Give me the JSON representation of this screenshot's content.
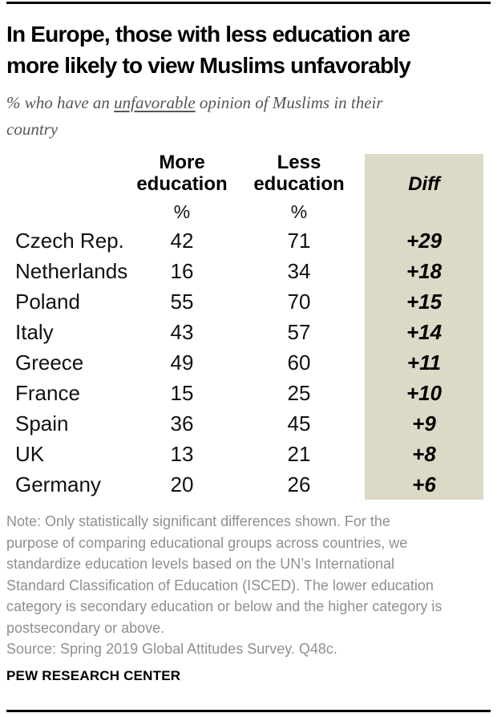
{
  "colors": {
    "diff_column_bg": "#dcd9c7",
    "title_text": "#000000",
    "subtitle_text": "#55565a",
    "note_text": "#8e8f91"
  },
  "header": {
    "title_lines": [
      "In Europe, those with less education are",
      "more likely to view Muslims unfavorably"
    ],
    "subtitle": {
      "pre": "% who have an ",
      "underlined": "unfavorable",
      "post": " opinion of Muslims in their",
      "line2": "country"
    }
  },
  "table": {
    "header": {
      "more": [
        "More",
        "education"
      ],
      "less": [
        "Less",
        "education"
      ],
      "diff": "Diff"
    },
    "pct": "%",
    "rows": [
      {
        "country": "Czech Rep.",
        "more": "42",
        "less": "71",
        "diff": "+29"
      },
      {
        "country": "Netherlands",
        "more": "16",
        "less": "34",
        "diff": "+18"
      },
      {
        "country": "Poland",
        "more": "55",
        "less": "70",
        "diff": "+15"
      },
      {
        "country": "Italy",
        "more": "43",
        "less": "57",
        "diff": "+14"
      },
      {
        "country": "Greece",
        "more": "49",
        "less": "60",
        "diff": "+11"
      },
      {
        "country": "France",
        "more": "15",
        "less": "25",
        "diff": "+10"
      },
      {
        "country": "Spain",
        "more": "36",
        "less": "45",
        "diff": "+9"
      },
      {
        "country": "UK",
        "more": "13",
        "less": "21",
        "diff": "+8"
      },
      {
        "country": "Germany",
        "more": "20",
        "less": "26",
        "diff": "+6"
      }
    ]
  },
  "footer": {
    "note_lines": [
      "Note: Only statistically significant differences shown. For the",
      "purpose of comparing educational groups across countries, we",
      "standardize education levels based on the UN’s International",
      "Standard Classification of Education (ISCED). The lower education",
      "category is secondary education or below and the higher category is",
      "postsecondary or above."
    ],
    "source": "Source: Spring 2019 Global Attitudes Survey. Q48c.",
    "brand": "PEW RESEARCH CENTER"
  },
  "chart_data": {
    "type": "table",
    "title": "In Europe, those with less education are more likely to view Muslims unfavorably",
    "subtitle": "% who have an unfavorable opinion of Muslims in their country",
    "columns": [
      "Country",
      "More education (%)",
      "Less education (%)",
      "Diff"
    ],
    "rows": [
      [
        "Czech Rep.",
        42,
        71,
        "+29"
      ],
      [
        "Netherlands",
        16,
        34,
        "+18"
      ],
      [
        "Poland",
        55,
        70,
        "+15"
      ],
      [
        "Italy",
        43,
        57,
        "+14"
      ],
      [
        "Greece",
        49,
        60,
        "+11"
      ],
      [
        "France",
        15,
        25,
        "+10"
      ],
      [
        "Spain",
        36,
        45,
        "+9"
      ],
      [
        "UK",
        13,
        21,
        "+8"
      ],
      [
        "Germany",
        20,
        26,
        "+6"
      ]
    ],
    "layout_hints": {
      "diff_column_highlighted": true,
      "sorted_by": "Diff descending"
    },
    "note": "Note: Only statistically significant differences shown. For the purpose of comparing educational groups across countries, we standardize education levels based on the UN’s International Standard Classification of Education (ISCED). The lower education category is secondary education or below and the higher category is postsecondary or above.",
    "source": "Source: Spring 2019 Global Attitudes Survey. Q48c.",
    "branding": "PEW RESEARCH CENTER"
  }
}
